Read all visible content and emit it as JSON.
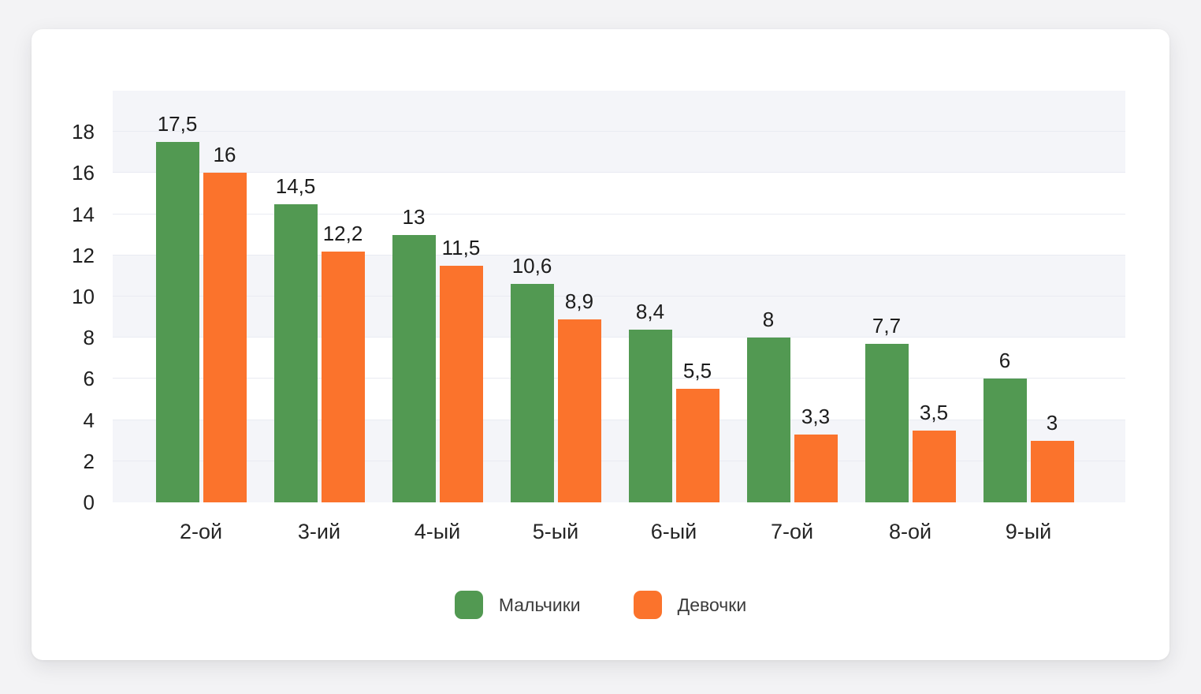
{
  "window": {
    "background": "#f3f3f5",
    "card_background": "#ffffff"
  },
  "chart_data": {
    "type": "bar",
    "title": "",
    "xlabel": "",
    "ylabel": "",
    "categories": [
      "2-ой",
      "3-ий",
      "4-ый",
      "5-ый",
      "6-ый",
      "7-ой",
      "8-ой",
      "9-ый"
    ],
    "series": [
      {
        "name": "Мальчики",
        "color": "#529952",
        "values": [
          17.5,
          14.5,
          13,
          10.6,
          8.4,
          8,
          7.7,
          6
        ],
        "value_labels": [
          "17,5",
          "14,5",
          "13",
          "10,6",
          "8,4",
          "8",
          "7,7",
          "6"
        ]
      },
      {
        "name": "Девочки",
        "color": "#fb732c",
        "values": [
          16,
          12.2,
          11.5,
          8.9,
          5.5,
          3.3,
          3.5,
          3
        ],
        "value_labels": [
          "16",
          "12,2",
          "11,5",
          "8,9",
          "5,5",
          "3,3",
          "3,5",
          "3"
        ]
      }
    ],
    "ylim": [
      0,
      20
    ],
    "yticks": [
      0,
      2,
      4,
      6,
      8,
      10,
      12,
      14,
      16,
      18
    ],
    "grid": true,
    "band_stripe_units": 4,
    "band_color": "#f4f5f9",
    "gridline_color": "#e9ebf2",
    "legend_position": "bottom",
    "decimal_separator": ","
  }
}
